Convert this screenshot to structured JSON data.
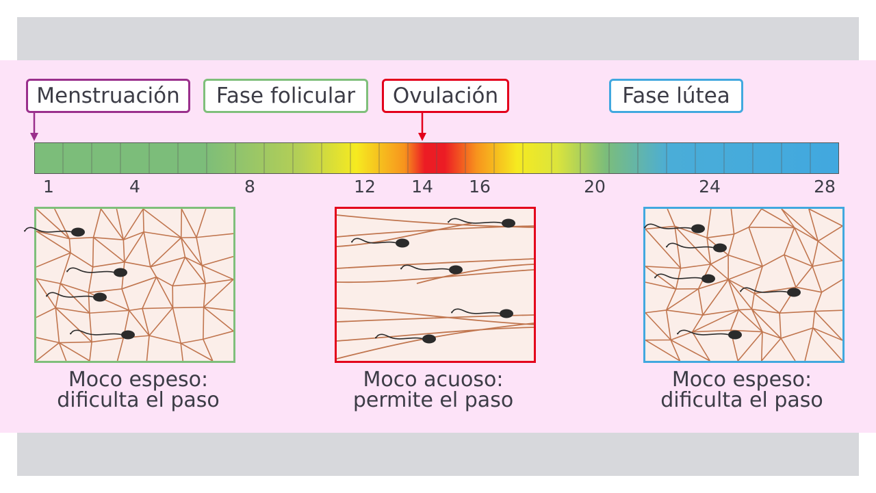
{
  "phases": {
    "menstruacion": "Menstruación",
    "folicular": "Fase folicular",
    "ovulacion": "Ovulación",
    "lutea": "Fase lútea"
  },
  "colors": {
    "menstruacion": "#9a2f8c",
    "folicular": "#7fbf7b",
    "ovulacion": "#e3001b",
    "lutea": "#41a8df",
    "mucus_fiber": "#c0754e",
    "background": "#fde3f8"
  },
  "timeline": {
    "day_count": 28,
    "tick_labels": [
      "1",
      "4",
      "8",
      "12",
      "14",
      "16",
      "20",
      "24",
      "28"
    ]
  },
  "panels": [
    {
      "line1": "Moco espeso:",
      "line2": "dificulta el paso"
    },
    {
      "line1": "Moco acuoso:",
      "line2": "permite el paso"
    },
    {
      "line1": "Moco espeso:",
      "line2": "dificulta el paso"
    }
  ],
  "icons": [
    "arrow-down-icon",
    "sperm-icon"
  ]
}
